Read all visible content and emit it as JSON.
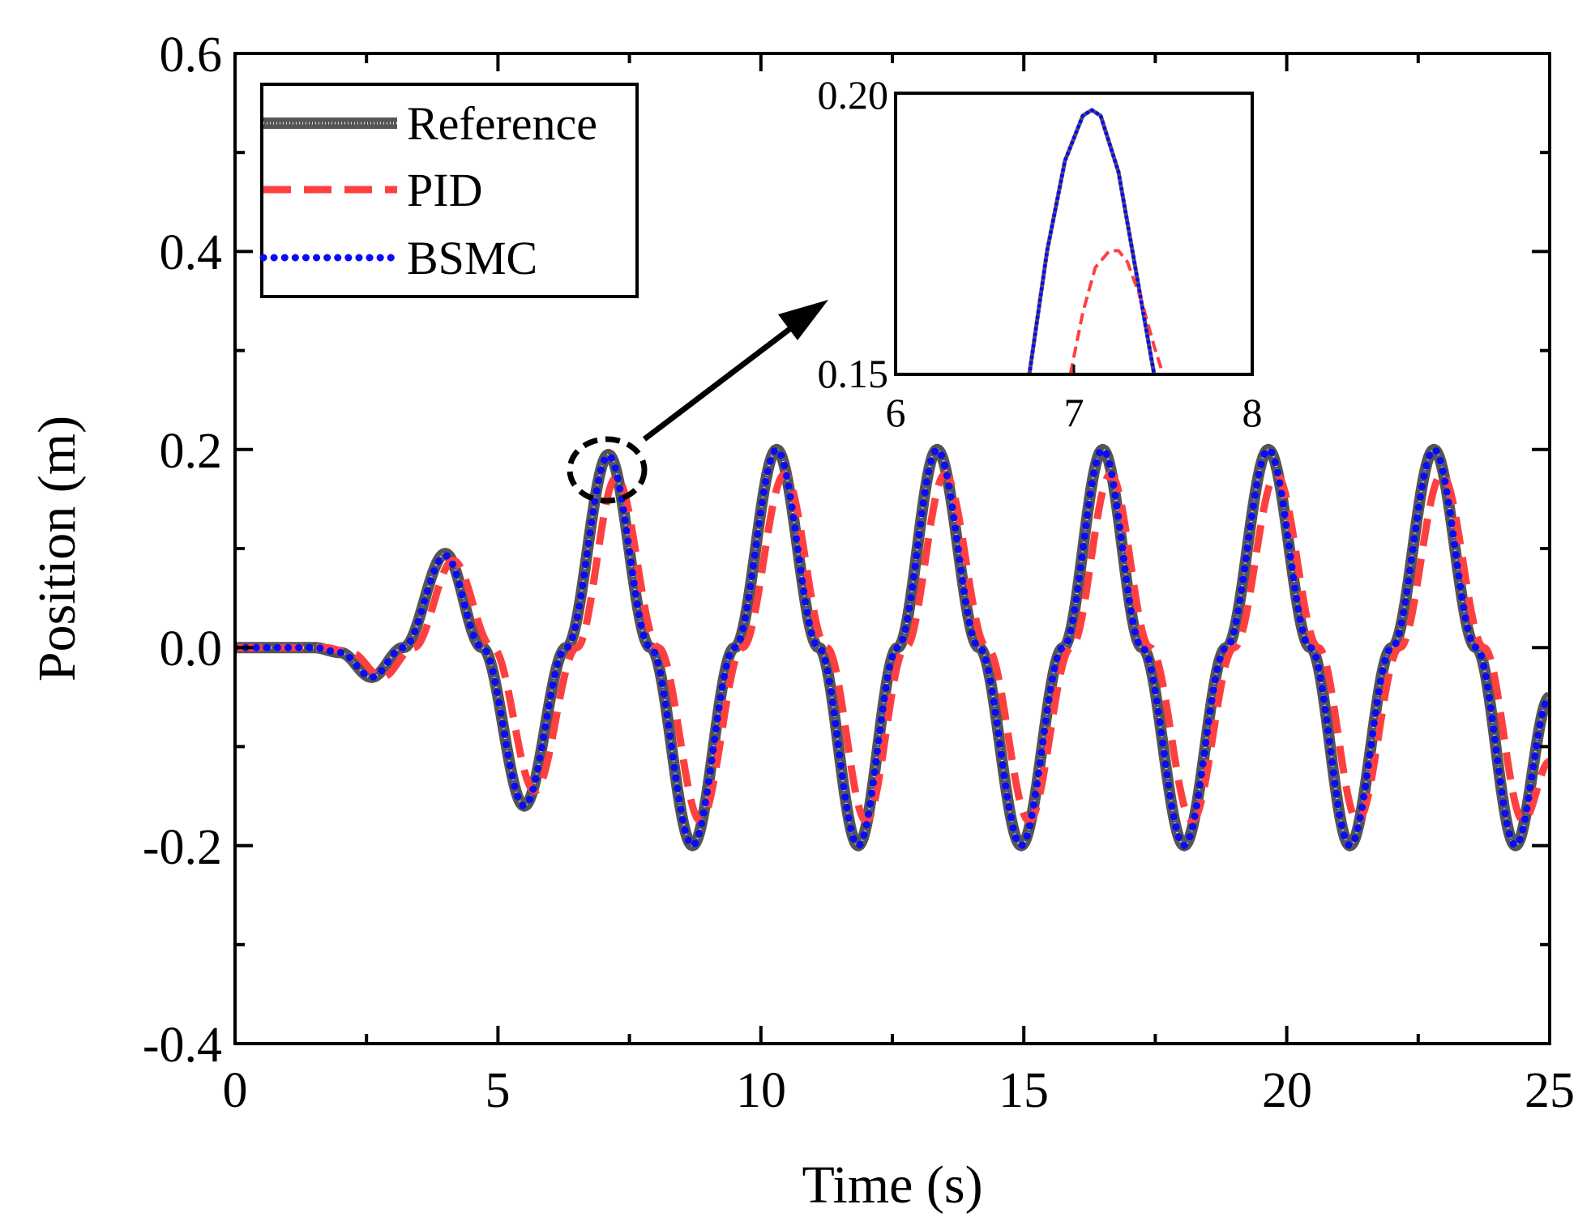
{
  "chart_data": [
    {
      "id": "main",
      "type": "line",
      "title": "",
      "xlabel": "Time (s)",
      "ylabel": "Position (m)",
      "xlim": [
        0,
        25
      ],
      "ylim": [
        -0.4,
        0.6
      ],
      "xticks": [
        0,
        5,
        10,
        15,
        20,
        25
      ],
      "xtick_labels": [
        "0",
        "5",
        "10",
        "15",
        "20",
        "25"
      ],
      "yticks": [
        -0.4,
        -0.2,
        0.0,
        0.2,
        0.4,
        0.6
      ],
      "ytick_labels": [
        "-0.4",
        "-0.2",
        "0.0",
        "0.2",
        "0.4",
        "0.6"
      ],
      "grid": false,
      "legend_position": "top-left",
      "series": [
        {
          "name": "Reference",
          "color": "#555555",
          "style": "solid-thick",
          "x": [
            0,
            1.5,
            2.0,
            2.6,
            3.2,
            4.0,
            4.7,
            5.5,
            6.3,
            7.1,
            7.9,
            8.7,
            9.5,
            10.3,
            11.1,
            11.85,
            12.6,
            13.35,
            14.15,
            14.95,
            15.75,
            16.5,
            17.25,
            18.05,
            18.85,
            19.65,
            20.45,
            21.2,
            22.0,
            22.8,
            23.6,
            24.35,
            25.0
          ],
          "y": [
            0,
            0,
            -0.005,
            -0.03,
            0.0,
            0.095,
            0.0,
            -0.16,
            0.0,
            0.195,
            0.0,
            -0.2,
            0.0,
            0.2,
            0.0,
            -0.2,
            0.0,
            0.2,
            0.0,
            -0.2,
            0.0,
            0.2,
            0.0,
            -0.2,
            0.0,
            0.2,
            0.0,
            -0.2,
            0.0,
            0.2,
            0.0,
            -0.2,
            -0.05
          ]
        },
        {
          "name": "PID",
          "color": "#ff4040",
          "style": "dashed",
          "x": [
            0,
            1.7,
            2.2,
            2.8,
            3.4,
            4.15,
            4.9,
            5.7,
            6.5,
            7.25,
            8.05,
            8.85,
            9.65,
            10.45,
            11.25,
            12.0,
            12.75,
            13.5,
            14.3,
            15.1,
            15.9,
            16.65,
            17.4,
            18.2,
            19.0,
            19.8,
            20.6,
            21.35,
            22.15,
            22.95,
            23.75,
            24.5,
            25.0
          ],
          "y": [
            0,
            0,
            -0.005,
            -0.03,
            0.0,
            0.088,
            0.0,
            -0.145,
            0.0,
            0.172,
            0.0,
            -0.175,
            0.0,
            0.175,
            0.0,
            -0.175,
            0.0,
            0.175,
            0.0,
            -0.175,
            0.0,
            0.175,
            0.0,
            -0.175,
            0.0,
            0.175,
            0.0,
            -0.175,
            0.0,
            0.175,
            0.0,
            -0.175,
            -0.115
          ]
        },
        {
          "name": "BSMC",
          "color": "#0a0aff",
          "style": "dotted",
          "x": [
            0,
            1.5,
            2.0,
            2.6,
            3.2,
            4.0,
            4.7,
            5.5,
            6.3,
            7.1,
            7.9,
            8.7,
            9.5,
            10.3,
            11.1,
            11.85,
            12.6,
            13.35,
            14.15,
            14.95,
            15.75,
            16.5,
            17.25,
            18.05,
            18.85,
            19.65,
            20.45,
            21.2,
            22.0,
            22.8,
            23.6,
            24.35,
            25.0
          ],
          "y": [
            0,
            0,
            -0.005,
            -0.03,
            0.0,
            0.093,
            0.0,
            -0.16,
            0.0,
            0.194,
            0.0,
            -0.2,
            0.0,
            0.2,
            0.0,
            -0.2,
            0.0,
            0.2,
            0.0,
            -0.2,
            0.0,
            0.2,
            0.0,
            -0.2,
            0.0,
            0.2,
            0.0,
            -0.2,
            0.0,
            0.2,
            0.0,
            -0.2,
            -0.05
          ]
        }
      ],
      "annotation": "dashed circle around peak near t=7.1 s with arrow to inset"
    },
    {
      "id": "inset",
      "type": "line",
      "xlim": [
        6,
        8
      ],
      "ylim": [
        0.15,
        0.2
      ],
      "xticks": [
        6,
        7,
        8
      ],
      "xtick_labels": [
        "6",
        "7",
        "8"
      ],
      "yticks": [
        0.15,
        0.2
      ],
      "ytick_labels": [
        "0.15",
        "0.20"
      ],
      "series": [
        {
          "name": "Reference",
          "color": "#555555",
          "x": [
            6.75,
            6.85,
            6.95,
            7.05,
            7.1,
            7.15,
            7.25,
            7.35,
            7.45
          ],
          "y": [
            0.15,
            0.172,
            0.188,
            0.196,
            0.197,
            0.196,
            0.186,
            0.168,
            0.15
          ]
        },
        {
          "name": "PID",
          "color": "#ff4040",
          "x": [
            6.98,
            7.05,
            7.12,
            7.2,
            7.25,
            7.3,
            7.38,
            7.45,
            7.5
          ],
          "y": [
            0.15,
            0.161,
            0.169,
            0.172,
            0.172,
            0.17,
            0.163,
            0.155,
            0.15
          ]
        },
        {
          "name": "BSMC",
          "color": "#0a0aff",
          "x": [
            6.75,
            6.85,
            6.95,
            7.05,
            7.1,
            7.15,
            7.25,
            7.35,
            7.45
          ],
          "y": [
            0.15,
            0.172,
            0.188,
            0.196,
            0.197,
            0.196,
            0.186,
            0.168,
            0.15
          ]
        }
      ]
    }
  ]
}
